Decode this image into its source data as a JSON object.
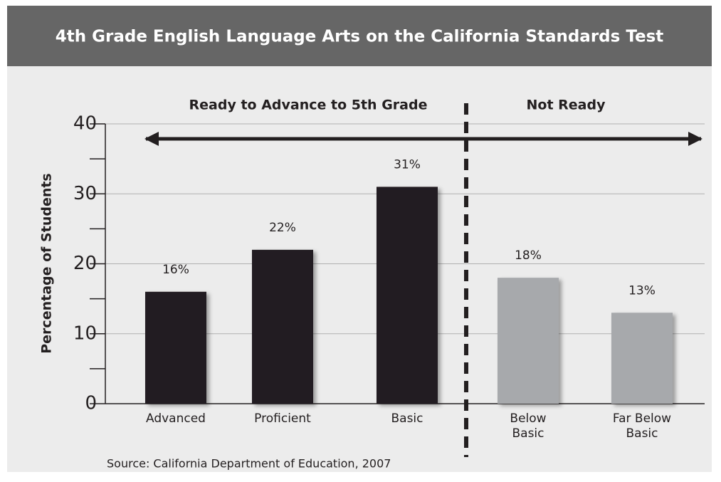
{
  "chart_data": {
    "type": "bar",
    "title": "4th Grade English Language Arts on the California Standards Test",
    "y_label": "Percentage of Students",
    "group_labels": [
      "Ready to Advance to 5th Grade",
      "Not Ready"
    ],
    "source": "Source: California Department of Education, 2007",
    "categories": [
      "Advanced",
      "Proficient",
      "Basic",
      "Below Basic",
      "Far Below Basic"
    ],
    "values": [
      16,
      22,
      31,
      18,
      13
    ],
    "value_labels": [
      "16%",
      "22%",
      "31%",
      "18%",
      "13%"
    ],
    "colors": [
      "#231f20",
      "#231f20",
      "#231f20",
      "#a7a9ac",
      "#a7a9ac"
    ],
    "ylim": [
      0,
      40
    ],
    "yticks": [
      0,
      10,
      20,
      30,
      40
    ],
    "grid": true
  }
}
